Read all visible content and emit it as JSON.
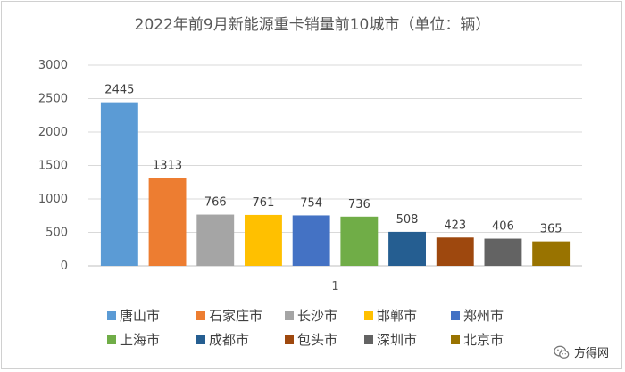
{
  "chart_data": {
    "type": "bar",
    "title": "2022年前9月新能源重卡销量前10城市（单位：辆）",
    "categories": [
      "1"
    ],
    "series": [
      {
        "name": "唐山市",
        "values": [
          2445
        ],
        "color": "#5B9BD5"
      },
      {
        "name": "石家庄市",
        "values": [
          1313
        ],
        "color": "#ED7D31"
      },
      {
        "name": "长沙市",
        "values": [
          766
        ],
        "color": "#A5A5A5"
      },
      {
        "name": "邯郸市",
        "values": [
          761
        ],
        "color": "#FFC000"
      },
      {
        "name": "郑州市",
        "values": [
          754
        ],
        "color": "#4472C4"
      },
      {
        "name": "上海市",
        "values": [
          736
        ],
        "color": "#70AD47"
      },
      {
        "name": "成都市",
        "values": [
          508
        ],
        "color": "#255E91"
      },
      {
        "name": "包头市",
        "values": [
          423
        ],
        "color": "#9E480E"
      },
      {
        "name": "深圳市",
        "values": [
          406
        ],
        "color": "#636363"
      },
      {
        "name": "北京市",
        "values": [
          365
        ],
        "color": "#997300"
      }
    ],
    "ylim": [
      0,
      3000
    ],
    "yticks": [
      0,
      500,
      1000,
      1500,
      2000,
      2500,
      3000
    ],
    "grid": true,
    "legend_position": "bottom",
    "xlabel": "",
    "ylabel": ""
  },
  "watermark": {
    "text": "方得网",
    "icon": "wechat-icon"
  }
}
